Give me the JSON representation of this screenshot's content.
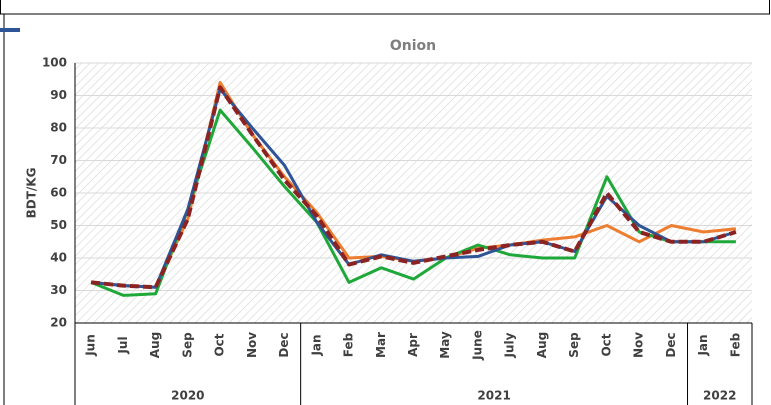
{
  "chart_data": {
    "type": "line",
    "title": "Onion",
    "y_label": "BDT/KG",
    "groups": [
      {
        "label": "2020",
        "categories": [
          "Jun",
          "Jul",
          "Aug",
          "Sep",
          "Oct",
          "Nov",
          "Dec"
        ]
      },
      {
        "label": "2021",
        "categories": [
          "Jan",
          "Feb",
          "Mar",
          "Apr",
          "May",
          "June",
          "July",
          "Aug",
          "Sep",
          "Oct",
          "Nov",
          "Dec"
        ]
      },
      {
        "label": "2022",
        "categories": [
          "Jan",
          "Feb"
        ]
      }
    ],
    "series": [
      {
        "color": "#ed7d31",
        "values": [
          32.5,
          31.5,
          31,
          52,
          94,
          78,
          65,
          54,
          40,
          40.5,
          39,
          40,
          43,
          44,
          45.5,
          46.5,
          50,
          45,
          50,
          48,
          49
        ]
      },
      {
        "color": "#1fa83a",
        "values": [
          32.5,
          28.5,
          29,
          55,
          85.5,
          74,
          62,
          51,
          32.5,
          37,
          33.5,
          40,
          44,
          41,
          40,
          40,
          65,
          48,
          45,
          45,
          45
        ]
      },
      {
        "color": "#2f5597",
        "values": [
          32.5,
          31.5,
          31,
          55,
          92,
          80,
          68.5,
          51,
          38,
          41,
          39,
          40,
          40.5,
          44,
          45,
          42,
          59,
          50,
          45,
          45,
          48
        ]
      },
      {
        "color": "#8b2323",
        "dashed": true,
        "values": [
          32.5,
          31.5,
          31,
          52,
          92.5,
          78,
          64,
          53,
          38,
          40.5,
          38.5,
          40.5,
          42.5,
          44,
          45,
          42,
          60,
          48,
          45,
          45,
          48
        ]
      }
    ],
    "ylim": [
      20,
      100
    ],
    "yticks": [
      20,
      30,
      40,
      50,
      60,
      70,
      80,
      90,
      100
    ],
    "grid": true
  }
}
